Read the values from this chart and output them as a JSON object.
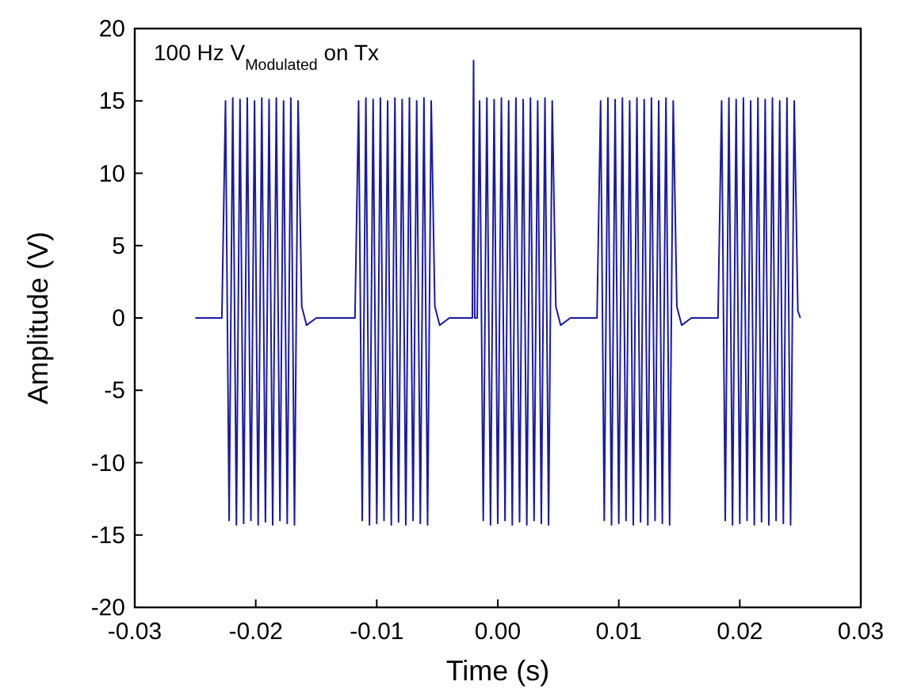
{
  "chart_data": {
    "type": "line",
    "xlabel": "Time (s)",
    "ylabel": "Amplitude (V)",
    "annotations": [
      "100 Hz V$_{Modulated}$ on Tx"
    ],
    "xlim": [
      -0.03,
      0.03
    ],
    "ylim": [
      -20,
      20
    ],
    "xticks": [
      -0.03,
      -0.02,
      -0.01,
      {
        "value": 0,
        "label": "0.00"
      },
      0.01,
      0.02,
      0.03
    ],
    "yticks": [
      -20,
      -15,
      -10,
      -5,
      0,
      5,
      10,
      15,
      20
    ],
    "grid": false,
    "marker": "none",
    "line_style": "solid",
    "series": [
      {
        "color": "#1a1aa6",
        "x": [
          -0.025,
          -0.0228,
          -0.0225,
          -0.0222,
          -0.0219,
          -0.0216,
          -0.0213,
          -0.021,
          -0.0207,
          -0.0204,
          -0.0201,
          -0.0198,
          -0.0195,
          -0.0192,
          -0.0189,
          -0.0186,
          -0.0183,
          -0.018,
          -0.0177,
          -0.0174,
          -0.0171,
          -0.0168,
          -0.0165,
          -0.0162,
          -0.0158,
          -0.015,
          -0.0118,
          -0.0115,
          -0.0112,
          -0.0109,
          -0.0106,
          -0.0103,
          -0.01,
          -0.0097,
          -0.0094,
          -0.0091,
          -0.0088,
          -0.0085,
          -0.0082,
          -0.0079,
          -0.0076,
          -0.0073,
          -0.007,
          -0.0067,
          -0.0064,
          -0.0061,
          -0.0058,
          -0.0055,
          -0.0052,
          -0.0048,
          -0.004,
          -0.0021,
          -0.002,
          -0.0019,
          -0.0017,
          -0.0015,
          -0.0012,
          -0.0009,
          -0.0006,
          -0.0003,
          0,
          0.0003,
          0.0006,
          0.0009,
          0.0012,
          0.0015,
          0.0018,
          0.0021,
          0.0024,
          0.0027,
          0.003,
          0.0033,
          0.0036,
          0.0039,
          0.0042,
          0.0045,
          0.0048,
          0.0052,
          0.006,
          0.0082,
          0.0085,
          0.0088,
          0.0091,
          0.0094,
          0.0097,
          0.01,
          0.0103,
          0.0106,
          0.0109,
          0.0112,
          0.0115,
          0.0118,
          0.0121,
          0.0124,
          0.0127,
          0.013,
          0.0133,
          0.0136,
          0.0139,
          0.0142,
          0.0145,
          0.0148,
          0.0152,
          0.016,
          0.0182,
          0.0185,
          0.0188,
          0.0191,
          0.0194,
          0.0197,
          0.02,
          0.0203,
          0.0206,
          0.0209,
          0.0212,
          0.0215,
          0.0218,
          0.0221,
          0.0224,
          0.0227,
          0.023,
          0.0233,
          0.0236,
          0.0239,
          0.0242,
          0.0245,
          0.0248,
          0.025
        ],
        "values": [
          0,
          0,
          15,
          -14,
          15.2,
          -14.3,
          15.1,
          -14.2,
          15.2,
          -14,
          15,
          -14.3,
          15.2,
          -14.1,
          15.1,
          -14.3,
          15.2,
          -14,
          15,
          -14.2,
          15.2,
          -14.3,
          15,
          0.8,
          -0.5,
          0,
          0,
          15,
          -14,
          15.2,
          -14.3,
          15.1,
          -14.2,
          15.2,
          -14,
          15,
          -14.3,
          15.2,
          -14.1,
          15.1,
          -14.3,
          15.2,
          -14,
          15,
          -14.2,
          15.2,
          -14.3,
          15,
          0.8,
          -0.5,
          0,
          0,
          17.8,
          0,
          0,
          15,
          -14,
          15.2,
          -14.3,
          15.1,
          -14.2,
          15.2,
          -14,
          15,
          -14.3,
          15.2,
          -14.1,
          15.1,
          -14.3,
          15.2,
          -14,
          15,
          -14.2,
          15.2,
          -14.3,
          15,
          0.8,
          -0.5,
          0,
          0,
          15,
          -14,
          15.2,
          -14.3,
          15.1,
          -14.2,
          15.2,
          -14,
          15,
          -14.3,
          15.2,
          -14.1,
          15.1,
          -14.3,
          15.2,
          -14,
          15,
          -14.2,
          15.2,
          -14.3,
          15,
          0.8,
          -0.5,
          0,
          0,
          15,
          -14,
          15.2,
          -14.3,
          15.1,
          -14.2,
          15.2,
          -14,
          15,
          -14.3,
          15.2,
          -14.1,
          15.1,
          -14.3,
          15.2,
          -14,
          15,
          -14.2,
          15.2,
          -14.3,
          15,
          0.5,
          0
        ]
      }
    ]
  }
}
